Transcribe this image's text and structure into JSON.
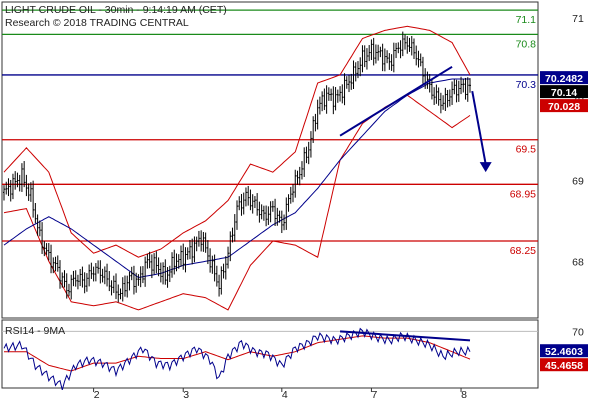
{
  "header": {
    "title": "LIGHT CRUDE OIL - 30min - 9:14:19 AM (CET)",
    "subtitle": "Research © 2018 TRADING CENTRAL"
  },
  "rsi_header": {
    "label": "RSI14 - 9MA"
  },
  "colors": {
    "support": "#cc0000",
    "resistance": "#1a8a1a",
    "pivot": "#00008b",
    "candle": "#000000",
    "bollinger": "#cc0000",
    "moving_average": "#00008b",
    "rsi": "#00008b",
    "rsi_ma": "#cc0000",
    "forecast_arrow": "#00008b",
    "tag_blue": "#00008b",
    "tag_black": "#000000",
    "tag_red": "#cc0000"
  },
  "chart_data": [
    {
      "type": "candlestick",
      "x_ticks": [
        "2",
        "3",
        "4",
        "7",
        "8"
      ],
      "y_ticks": [
        68,
        69,
        70,
        71
      ],
      "ylim": [
        67.3,
        71.2
      ],
      "levels": [
        {
          "value": 71.1,
          "label": "71.1",
          "kind": "resistance"
        },
        {
          "value": 70.8,
          "label": "70.8",
          "kind": "resistance"
        },
        {
          "value": 70.3,
          "label": "70.3",
          "kind": "pivot"
        },
        {
          "value": 69.5,
          "label": "69.5",
          "kind": "support"
        },
        {
          "value": 68.95,
          "label": "68.95",
          "kind": "support"
        },
        {
          "value": 68.25,
          "label": "68.25",
          "kind": "support"
        }
      ],
      "price_tags": [
        {
          "value": 70.2482,
          "label": "70.2482",
          "color": "tag_blue"
        },
        {
          "value": 70.14,
          "label": "70.14",
          "color": "tag_black"
        },
        {
          "value": 70.028,
          "label": "70.028",
          "color": "tag_red"
        }
      ],
      "close_path": [
        [
          0,
          68.85
        ],
        [
          4,
          68.95
        ],
        [
          8,
          69.05
        ],
        [
          12,
          68.8
        ],
        [
          16,
          68.3
        ],
        [
          20,
          68.05
        ],
        [
          24,
          67.9
        ],
        [
          28,
          67.65
        ],
        [
          32,
          67.8
        ],
        [
          36,
          67.75
        ],
        [
          40,
          67.9
        ],
        [
          44,
          67.85
        ],
        [
          48,
          67.7
        ],
        [
          52,
          67.6
        ],
        [
          56,
          67.8
        ],
        [
          60,
          67.75
        ],
        [
          64,
          68.0
        ],
        [
          68,
          67.95
        ],
        [
          72,
          67.8
        ],
        [
          76,
          68.0
        ],
        [
          80,
          68.05
        ],
        [
          84,
          68.15
        ],
        [
          88,
          68.3
        ],
        [
          92,
          68.0
        ],
        [
          96,
          67.7
        ],
        [
          100,
          68.1
        ],
        [
          104,
          68.65
        ],
        [
          108,
          68.8
        ],
        [
          112,
          68.7
        ],
        [
          116,
          68.55
        ],
        [
          120,
          68.65
        ],
        [
          124,
          68.45
        ],
        [
          128,
          68.85
        ],
        [
          132,
          69.1
        ],
        [
          136,
          69.4
        ],
        [
          140,
          69.9
        ],
        [
          144,
          70.05
        ],
        [
          148,
          70.0
        ],
        [
          152,
          70.15
        ],
        [
          156,
          70.3
        ],
        [
          160,
          70.5
        ],
        [
          164,
          70.6
        ],
        [
          168,
          70.55
        ],
        [
          172,
          70.45
        ],
        [
          176,
          70.65
        ],
        [
          180,
          70.7
        ],
        [
          184,
          70.55
        ],
        [
          188,
          70.25
        ],
        [
          192,
          70.05
        ],
        [
          196,
          69.95
        ],
        [
          200,
          70.1
        ],
        [
          204,
          70.15
        ],
        [
          208,
          70.14
        ]
      ],
      "upper_band": [
        [
          0,
          69.1
        ],
        [
          10,
          69.4
        ],
        [
          20,
          69.1
        ],
        [
          30,
          68.35
        ],
        [
          40,
          68.1
        ],
        [
          50,
          68.2
        ],
        [
          60,
          68.05
        ],
        [
          70,
          68.15
        ],
        [
          80,
          68.35
        ],
        [
          90,
          68.5
        ],
        [
          100,
          68.75
        ],
        [
          110,
          69.2
        ],
        [
          120,
          69.1
        ],
        [
          130,
          69.35
        ],
        [
          140,
          70.2
        ],
        [
          150,
          70.3
        ],
        [
          160,
          70.75
        ],
        [
          170,
          70.85
        ],
        [
          180,
          70.9
        ],
        [
          190,
          70.85
        ],
        [
          200,
          70.7
        ],
        [
          208,
          70.3
        ]
      ],
      "lower_band": [
        [
          0,
          68.6
        ],
        [
          10,
          68.65
        ],
        [
          20,
          68.0
        ],
        [
          30,
          67.5
        ],
        [
          40,
          67.45
        ],
        [
          50,
          67.5
        ],
        [
          60,
          67.4
        ],
        [
          70,
          67.5
        ],
        [
          80,
          67.6
        ],
        [
          90,
          67.55
        ],
        [
          100,
          67.4
        ],
        [
          110,
          67.95
        ],
        [
          120,
          68.25
        ],
        [
          130,
          68.2
        ],
        [
          140,
          68.05
        ],
        [
          150,
          69.25
        ],
        [
          160,
          69.7
        ],
        [
          170,
          69.9
        ],
        [
          180,
          70.05
        ],
        [
          190,
          69.85
        ],
        [
          200,
          69.65
        ],
        [
          208,
          69.8
        ]
      ],
      "moving_average": [
        [
          0,
          68.2
        ],
        [
          10,
          68.4
        ],
        [
          20,
          68.55
        ],
        [
          30,
          68.4
        ],
        [
          40,
          68.2
        ],
        [
          50,
          68.0
        ],
        [
          60,
          67.8
        ],
        [
          70,
          67.85
        ],
        [
          80,
          67.95
        ],
        [
          90,
          68.0
        ],
        [
          100,
          68.05
        ],
        [
          110,
          68.25
        ],
        [
          120,
          68.45
        ],
        [
          130,
          68.6
        ],
        [
          140,
          68.9
        ],
        [
          150,
          69.25
        ],
        [
          160,
          69.55
        ],
        [
          170,
          69.85
        ],
        [
          180,
          70.05
        ],
        [
          190,
          70.2
        ],
        [
          200,
          70.25
        ],
        [
          208,
          70.25
        ]
      ],
      "trendline": [
        [
          150,
          69.55
        ],
        [
          200,
          70.4
        ]
      ],
      "forecast_arrow": [
        [
          209,
          70.1
        ],
        [
          215,
          69.1
        ]
      ]
    },
    {
      "type": "line",
      "name": "RSI14 - 9MA",
      "y_ticks": [
        70
      ],
      "ylim": [
        20,
        80
      ],
      "price_tags": [
        {
          "value": 52.4603,
          "label": "52.4603",
          "color": "tag_blue"
        },
        {
          "value": 45.4658,
          "label": "45.4658",
          "color": "tag_red"
        }
      ],
      "rsi": [
        [
          0,
          55
        ],
        [
          8,
          58
        ],
        [
          14,
          40
        ],
        [
          20,
          30
        ],
        [
          26,
          22
        ],
        [
          32,
          40
        ],
        [
          38,
          45
        ],
        [
          44,
          42
        ],
        [
          50,
          35
        ],
        [
          56,
          45
        ],
        [
          62,
          55
        ],
        [
          68,
          42
        ],
        [
          74,
          40
        ],
        [
          80,
          48
        ],
        [
          86,
          55
        ],
        [
          92,
          45
        ],
        [
          96,
          28
        ],
        [
          100,
          48
        ],
        [
          106,
          60
        ],
        [
          112,
          52
        ],
        [
          118,
          50
        ],
        [
          124,
          40
        ],
        [
          130,
          55
        ],
        [
          136,
          60
        ],
        [
          140,
          66
        ],
        [
          148,
          62
        ],
        [
          154,
          66
        ],
        [
          160,
          70
        ],
        [
          166,
          65
        ],
        [
          172,
          62
        ],
        [
          178,
          66
        ],
        [
          184,
          62
        ],
        [
          190,
          58
        ],
        [
          196,
          48
        ],
        [
          202,
          52
        ],
        [
          208,
          52.46
        ]
      ],
      "rsi_ma": [
        [
          0,
          52
        ],
        [
          10,
          52
        ],
        [
          20,
          40
        ],
        [
          30,
          35
        ],
        [
          40,
          42
        ],
        [
          50,
          42
        ],
        [
          60,
          48
        ],
        [
          70,
          46
        ],
        [
          80,
          46
        ],
        [
          90,
          52
        ],
        [
          100,
          45
        ],
        [
          110,
          52
        ],
        [
          120,
          48
        ],
        [
          130,
          52
        ],
        [
          140,
          60
        ],
        [
          150,
          63
        ],
        [
          160,
          66
        ],
        [
          170,
          64
        ],
        [
          180,
          64
        ],
        [
          190,
          60
        ],
        [
          200,
          52
        ],
        [
          208,
          45.47
        ]
      ],
      "divergence_line": [
        [
          150,
          70
        ],
        [
          208,
          62
        ]
      ]
    }
  ]
}
